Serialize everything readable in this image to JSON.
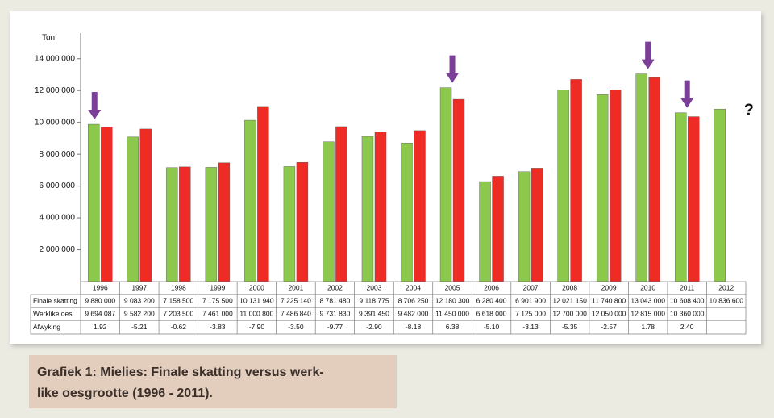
{
  "chart_data": {
    "type": "bar",
    "y_label": "Ton",
    "caption": [
      "Grafiek 1: Mielies: Finale skatting versus werk-",
      "like oesgrootte (1996 - 2011)."
    ],
    "annotation": "?",
    "categories": [
      "1996",
      "1997",
      "1998",
      "1999",
      "2000",
      "2001",
      "2002",
      "2003",
      "2004",
      "2005",
      "2006",
      "2007",
      "2008",
      "2009",
      "2010",
      "2011",
      "2012"
    ],
    "series": [
      {
        "name": "Finale skatting",
        "color": "#8cc84b",
        "values": [
          9880000,
          9083200,
          7158500,
          7175500,
          10131940,
          7225140,
          8781480,
          9118775,
          8706250,
          12180300,
          6280400,
          6901900,
          12021150,
          11740800,
          13043000,
          10608400,
          10836600
        ],
        "value_labels": [
          "9 880 000",
          "9 083 200",
          "7 158 500",
          "7 175 500",
          "10 131 940",
          "7 225 140",
          "8 781 480",
          "9 118 775",
          "8 706 250",
          "12 180 300",
          "6 280 400",
          "6 901 900",
          "12 021 150",
          "11 740 800",
          "13 043 000",
          "10 608 400",
          "10 836 600"
        ]
      },
      {
        "name": "Werklike oes",
        "color": "#ee2b24",
        "values": [
          9694087,
          9582200,
          7203500,
          7461000,
          11000800,
          7486840,
          9731830,
          9391450,
          9482000,
          11450000,
          6618000,
          7125000,
          12700000,
          12050000,
          12815000,
          10360000,
          null
        ],
        "value_labels": [
          "9 694 087",
          "9 582 200",
          "7 203 500",
          "7 461 000",
          "11 000 800",
          "7 486 840",
          "9 731 830",
          "9 391 450",
          "9 482 000",
          "11 450 000",
          "6 618 000",
          "7 125 000",
          "12 700 000",
          "12 050 000",
          "12 815 000",
          "10 360 000",
          null
        ]
      }
    ],
    "deviation": {
      "name": "Afwyking",
      "values": [
        1.92,
        -5.21,
        -0.62,
        -3.83,
        -7.9,
        -3.5,
        -9.77,
        -2.9,
        -8.18,
        6.38,
        -5.1,
        -3.13,
        -5.35,
        -2.57,
        1.78,
        2.4,
        null
      ],
      "value_labels": [
        "1.92",
        "-5.21",
        "-0.62",
        "-3.83",
        "-7.90",
        "-3.50",
        "-9.77",
        "-2.90",
        "-8.18",
        "6.38",
        "-5.10",
        "-3.13",
        "-5.35",
        "-2.57",
        "1.78",
        "2.40",
        null
      ]
    },
    "ylim": [
      0,
      15000000
    ],
    "yticks": [
      {
        "value": 2000000,
        "label": "2 000 000"
      },
      {
        "value": 4000000,
        "label": "4 000 000"
      },
      {
        "value": 6000000,
        "label": "6 000 000"
      },
      {
        "value": 8000000,
        "label": "8 000 000"
      },
      {
        "value": 10000000,
        "label": "10 000 000"
      },
      {
        "value": 12000000,
        "label": "12 000 000"
      },
      {
        "value": 14000000,
        "label": "14 000 000"
      }
    ],
    "grid": false
  }
}
